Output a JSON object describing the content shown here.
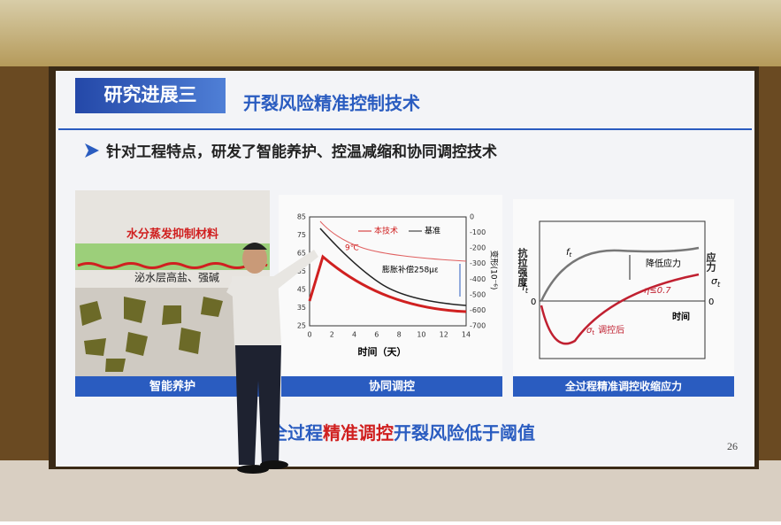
{
  "slide": {
    "header": {
      "section": "研究进展三",
      "title": "开裂风险精准控制技术"
    },
    "subtitle": "针对工程特点，研发了智能养护、控温减缩和协同调控技术",
    "panels": [
      {
        "caption": "智能养护",
        "labels": [
          "水分蒸发抑制材料",
          "泌水层高盐、强碱"
        ]
      },
      {
        "caption": "协同调控",
        "left_ticks": [
          "85",
          "75",
          "65",
          "55",
          "45",
          "35",
          "25"
        ],
        "right_ticks": [
          "0",
          "-100",
          "-200",
          "-300",
          "-400",
          "-500",
          "-600",
          "-700"
        ],
        "x_ticks": [
          "0",
          "2",
          "4",
          "6",
          "8",
          "10",
          "12",
          "14"
        ],
        "x_label": "时间（天）",
        "right_label": "变形(10⁻⁶)",
        "legend": [
          "本技术",
          "基准"
        ],
        "annotations": [
          "9℃",
          "膨胀补偿258με"
        ]
      },
      {
        "caption": "全过程精准调控收缩应力",
        "left_label": "抗拉强度",
        "right_label": "应力",
        "left_symbol": {
          "symbol": "f",
          "sub": "t"
        },
        "right_symbol": {
          "symbol": "σ",
          "sub": "t"
        },
        "zeros": [
          "0",
          "0"
        ],
        "x_label": "时间",
        "curve_strength": {
          "symbol": "f",
          "sub": "t"
        },
        "annotations": [
          "降低应力",
          "η≤0.7"
        ],
        "curve_stress": {
          "symbol": "σ",
          "sub": "t",
          "note": "调控后"
        }
      }
    ],
    "conclusion": [
      "全过程",
      "精准调控",
      "开裂风险低于阈值"
    ],
    "page_number": "26"
  }
}
